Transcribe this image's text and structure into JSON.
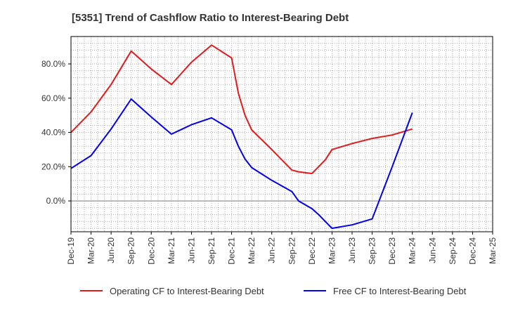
{
  "chart_data": {
    "type": "line",
    "title": "[5351]  Trend of Cashflow Ratio to Interest-Bearing Debt",
    "xlabel": "",
    "ylabel": "",
    "x_tick_labels": [
      "Dec-19",
      "Mar-20",
      "Jun-20",
      "Sep-20",
      "Dec-20",
      "Mar-21",
      "Jun-21",
      "Sep-21",
      "Dec-21",
      "Mar-22",
      "Jun-22",
      "Sep-22",
      "Dec-22",
      "Mar-23",
      "Jun-23",
      "Sep-23",
      "Dec-23",
      "Mar-24",
      "Jun-24",
      "Sep-24",
      "Dec-24",
      "Mar-25"
    ],
    "y_ticks": [
      0,
      20,
      40,
      60,
      80
    ],
    "y_tick_labels": [
      "0.0%",
      "20.0%",
      "40.0%",
      "60.0%",
      "80.0%"
    ],
    "ylim": [
      -18,
      96
    ],
    "grid": true,
    "legend_position": "bottom",
    "series": [
      {
        "name": "Operating CF to Interest-Bearing Debt",
        "color": "#e31a1c",
        "points": [
          [
            "Dec-19",
            40
          ],
          [
            "Mar-20",
            52
          ],
          [
            "Jun-20",
            68
          ],
          [
            "Sep-20",
            87.5
          ],
          [
            "Dec-20",
            77
          ],
          [
            "Mar-21",
            68
          ],
          [
            "Jun-21",
            81
          ],
          [
            "Sep-21",
            91
          ],
          [
            "Dec-21",
            83.5
          ],
          [
            "Jan-22",
            63
          ],
          [
            "Feb-22",
            50
          ],
          [
            "Mar-22",
            41.5
          ],
          [
            "Jun-22",
            30
          ],
          [
            "Sep-22",
            18
          ],
          [
            "Oct-22",
            17
          ],
          [
            "Dec-22",
            16
          ],
          [
            "Feb-23",
            24
          ],
          [
            "Mar-23",
            30
          ],
          [
            "Jun-23",
            33.5
          ],
          [
            "Sep-23",
            36.5
          ],
          [
            "Dec-23",
            38.5
          ],
          [
            "Mar-24",
            42
          ]
        ]
      },
      {
        "name": "Free CF to Interest-Bearing Debt",
        "color": "#0000ee",
        "points": [
          [
            "Dec-19",
            19
          ],
          [
            "Mar-20",
            26.5
          ],
          [
            "Jun-20",
            42
          ],
          [
            "Sep-20",
            59.5
          ],
          [
            "Dec-20",
            49
          ],
          [
            "Mar-21",
            39
          ],
          [
            "Jun-21",
            44.5
          ],
          [
            "Sep-21",
            48.5
          ],
          [
            "Dec-21",
            41.5
          ],
          [
            "Jan-22",
            32
          ],
          [
            "Feb-22",
            24.5
          ],
          [
            "Mar-22",
            19.5
          ],
          [
            "Jun-22",
            12
          ],
          [
            "Sep-22",
            5.5
          ],
          [
            "Oct-22",
            0
          ],
          [
            "Dec-22",
            -4.5
          ],
          [
            "Jan-23",
            -8
          ],
          [
            "Feb-23",
            -12
          ],
          [
            "Mar-23",
            -16
          ],
          [
            "Jun-23",
            -14
          ],
          [
            "Sep-23",
            -10.5
          ],
          [
            "Dec-23",
            20
          ],
          [
            "Mar-24",
            51.5
          ]
        ]
      }
    ]
  }
}
